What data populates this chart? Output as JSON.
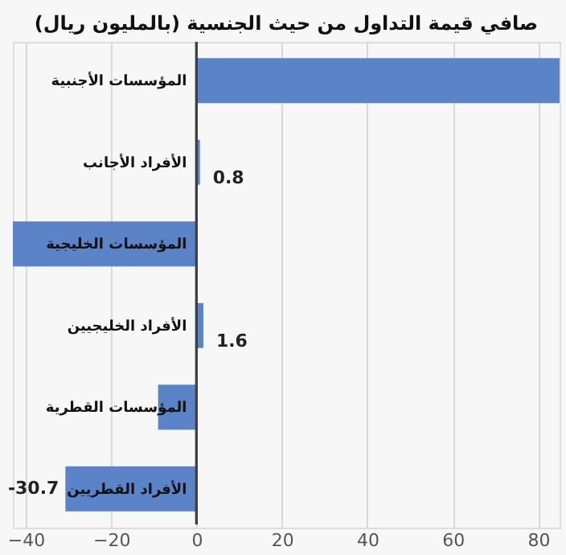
{
  "chart_data": {
    "type": "bar",
    "orientation": "horizontal",
    "title": "صافي قيمة التداول من حيث الجنسية (بالمليون ريال)",
    "categories": [
      "المؤسسات الأجنبية",
      "الأفراد الأجانب",
      "المؤسسات الخليجية",
      "الأفراد الخليجيين",
      "المؤسسات القطرية",
      "الأفراد القطريين"
    ],
    "values": [
      85,
      0.8,
      -43,
      1.6,
      -9,
      -30.7
    ],
    "value_labels": [
      null,
      "0.8",
      null,
      "1.6",
      null,
      "-30.7"
    ],
    "color": "#5b84c8",
    "xlim": [
      -43,
      85
    ],
    "xticks": [
      -40,
      -20,
      0,
      20,
      40,
      60,
      80
    ],
    "grid": "x",
    "legend": false
  }
}
